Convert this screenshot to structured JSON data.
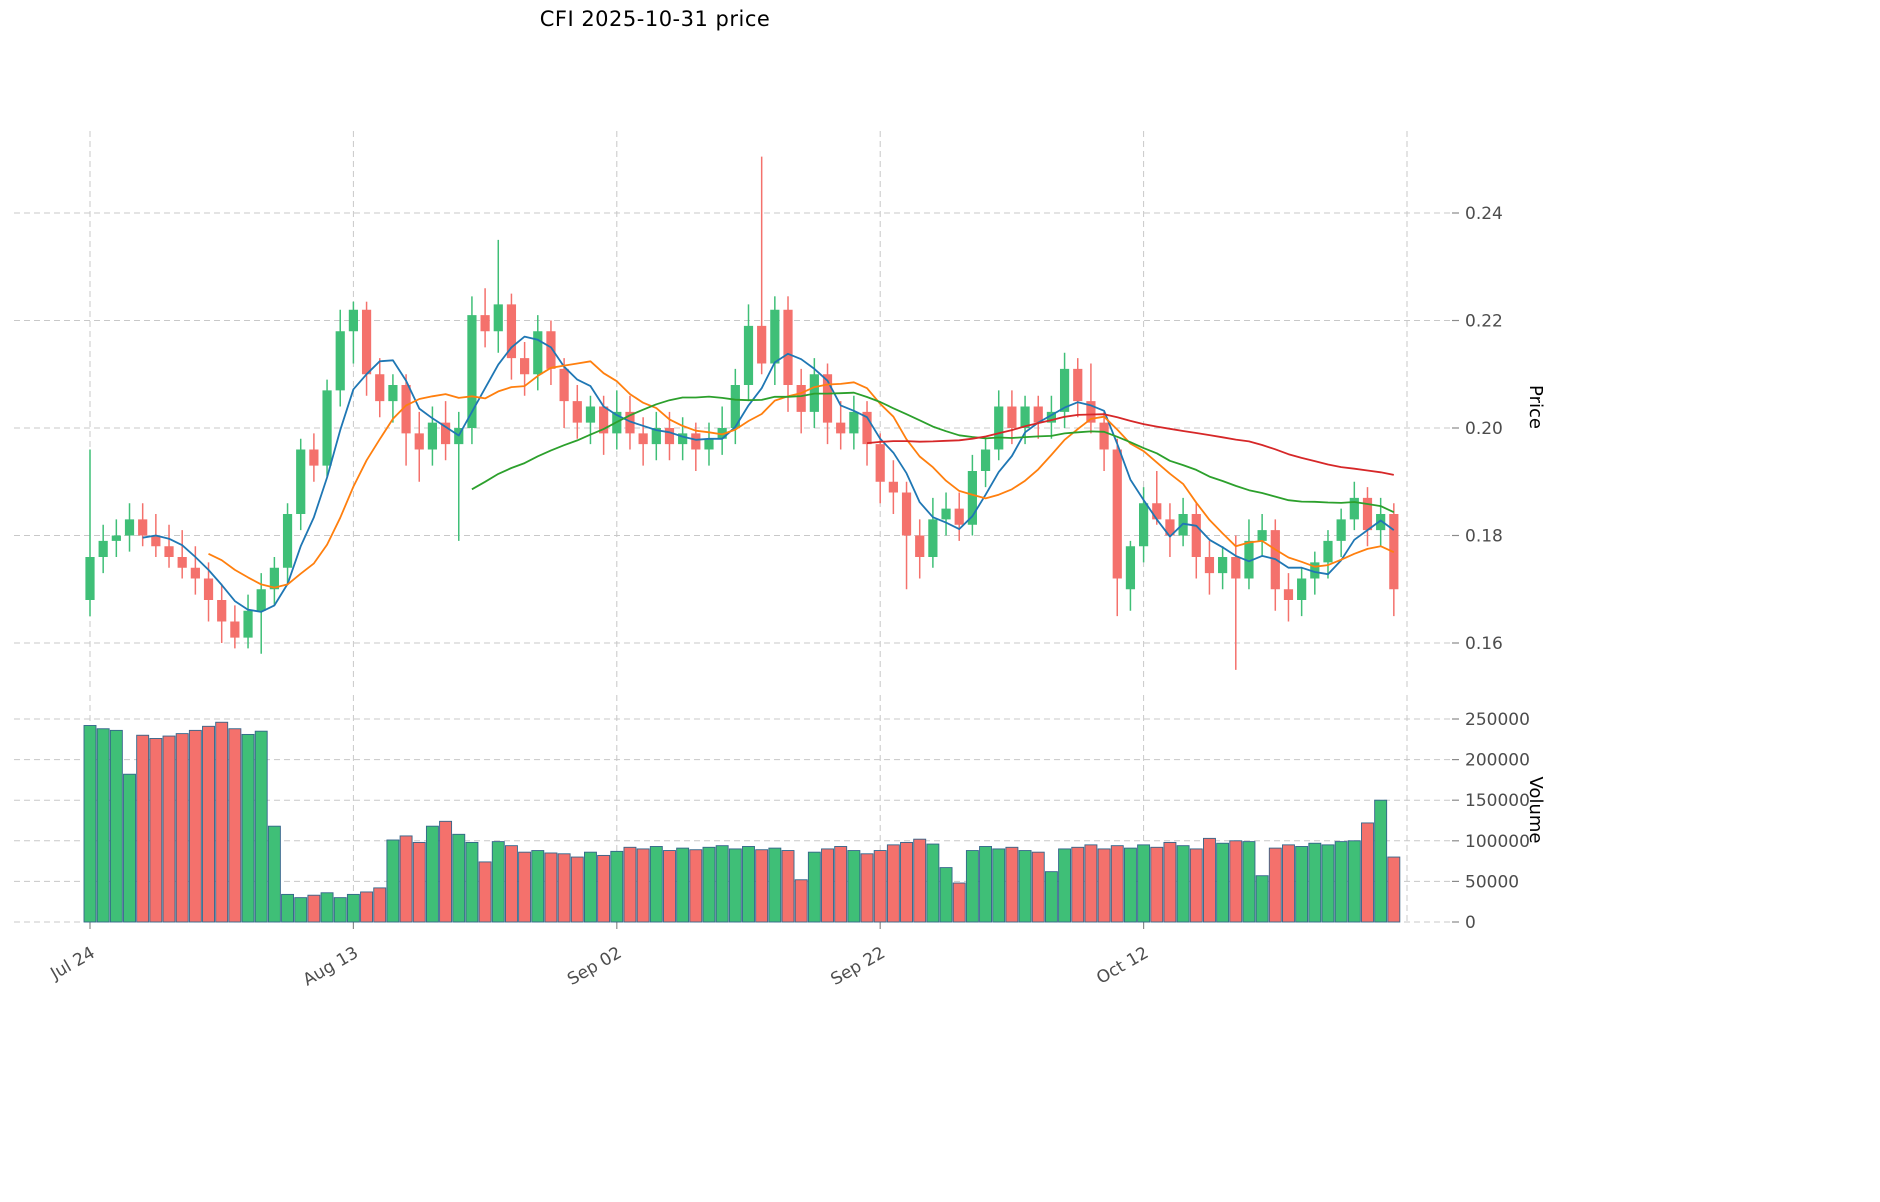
{
  "chart_data": {
    "type": "candlestick",
    "title": "CFI  2025-10-31  price",
    "ylabel": "Price",
    "ylabel_volume": "Volume",
    "grid": true,
    "legend_position": "none",
    "price_ylim": [
      0.153,
      0.2555
    ],
    "volume_ylim": [
      0,
      250000
    ],
    "price_ticks": [
      0.16,
      0.18,
      0.2,
      0.22,
      0.24
    ],
    "volume_ticks": [
      0,
      50000,
      100000,
      150000,
      200000,
      250000
    ],
    "x_tick_labels": [
      "Jul 24",
      "Aug 13",
      "Sep 02",
      "Sep 22",
      "Oct 12"
    ],
    "x_tick_indices": [
      0,
      20,
      40,
      60,
      80
    ],
    "x_grid_indices": [
      0,
      20,
      40,
      60,
      80,
      100
    ],
    "moving_averages": [
      {
        "name": "ma-5",
        "window": 5,
        "color": "#1f77b4"
      },
      {
        "name": "ma-10",
        "window": 10,
        "color": "#ff7f0e"
      },
      {
        "name": "ma-30",
        "window": 30,
        "color": "#2ca02c"
      },
      {
        "name": "ma-60",
        "window": 60,
        "color": "#d62728"
      }
    ],
    "colors": {
      "up": "#3fbf77",
      "down": "#f4716c",
      "volume_edge": "#33658a",
      "grid": "#c8c8c8",
      "tick_text": "#4d4d4d"
    },
    "columns": [
      "date",
      "open",
      "high",
      "low",
      "close",
      "volume"
    ],
    "ohlcv": [
      [
        "2025-07-24",
        0.168,
        0.196,
        0.165,
        0.176,
        242000
      ],
      [
        "2025-07-25",
        0.176,
        0.182,
        0.173,
        0.179,
        238000
      ],
      [
        "2025-07-26",
        0.179,
        0.183,
        0.176,
        0.18,
        236000
      ],
      [
        "2025-07-27",
        0.18,
        0.186,
        0.177,
        0.183,
        182000
      ],
      [
        "2025-07-28",
        0.183,
        0.186,
        0.178,
        0.18,
        230000
      ],
      [
        "2025-07-29",
        0.18,
        0.184,
        0.176,
        0.178,
        226000
      ],
      [
        "2025-07-30",
        0.178,
        0.182,
        0.174,
        0.176,
        229000
      ],
      [
        "2025-07-31",
        0.176,
        0.181,
        0.172,
        0.174,
        232000
      ],
      [
        "2025-08-01",
        0.174,
        0.178,
        0.169,
        0.172,
        236000
      ],
      [
        "2025-08-02",
        0.172,
        0.175,
        0.164,
        0.168,
        241000
      ],
      [
        "2025-08-03",
        0.168,
        0.171,
        0.16,
        0.164,
        246000
      ],
      [
        "2025-08-04",
        0.164,
        0.167,
        0.159,
        0.161,
        238000
      ],
      [
        "2025-08-05",
        0.161,
        0.169,
        0.159,
        0.166,
        231000
      ],
      [
        "2025-08-06",
        0.166,
        0.173,
        0.158,
        0.17,
        235000
      ],
      [
        "2025-08-07",
        0.17,
        0.176,
        0.167,
        0.174,
        118000
      ],
      [
        "2025-08-08",
        0.174,
        0.186,
        0.171,
        0.184,
        34000
      ],
      [
        "2025-08-09",
        0.184,
        0.198,
        0.181,
        0.196,
        30000
      ],
      [
        "2025-08-10",
        0.196,
        0.199,
        0.19,
        0.193,
        33000
      ],
      [
        "2025-08-11",
        0.193,
        0.209,
        0.191,
        0.207,
        36000
      ],
      [
        "2025-08-12",
        0.207,
        0.222,
        0.204,
        0.218,
        30000
      ],
      [
        "2025-08-13",
        0.218,
        0.2235,
        0.212,
        0.222,
        34000
      ],
      [
        "2025-08-14",
        0.222,
        0.2235,
        0.206,
        0.21,
        37000
      ],
      [
        "2025-08-15",
        0.21,
        0.213,
        0.202,
        0.205,
        42000
      ],
      [
        "2025-08-16",
        0.205,
        0.21,
        0.201,
        0.208,
        101000
      ],
      [
        "2025-08-17",
        0.208,
        0.21,
        0.193,
        0.199,
        106000
      ],
      [
        "2025-08-18",
        0.199,
        0.203,
        0.19,
        0.196,
        98000
      ],
      [
        "2025-08-19",
        0.196,
        0.204,
        0.193,
        0.201,
        118000
      ],
      [
        "2025-08-20",
        0.201,
        0.205,
        0.194,
        0.197,
        124000
      ],
      [
        "2025-08-21",
        0.197,
        0.203,
        0.179,
        0.2,
        108000
      ],
      [
        "2025-08-22",
        0.2,
        0.2245,
        0.197,
        0.221,
        98000
      ],
      [
        "2025-08-23",
        0.221,
        0.226,
        0.215,
        0.218,
        74000
      ],
      [
        "2025-08-24",
        0.218,
        0.235,
        0.214,
        0.223,
        99000
      ],
      [
        "2025-08-25",
        0.223,
        0.225,
        0.209,
        0.213,
        94000
      ],
      [
        "2025-08-26",
        0.213,
        0.216,
        0.206,
        0.21,
        86000
      ],
      [
        "2025-08-27",
        0.21,
        0.221,
        0.207,
        0.218,
        88000
      ],
      [
        "2025-08-28",
        0.218,
        0.22,
        0.208,
        0.211,
        85000
      ],
      [
        "2025-08-29",
        0.211,
        0.213,
        0.2,
        0.205,
        84000
      ],
      [
        "2025-08-30",
        0.205,
        0.208,
        0.198,
        0.201,
        80000
      ],
      [
        "2025-08-31",
        0.201,
        0.206,
        0.197,
        0.204,
        86000
      ],
      [
        "2025-09-01",
        0.204,
        0.206,
        0.195,
        0.199,
        82000
      ],
      [
        "2025-09-02",
        0.199,
        0.207,
        0.196,
        0.203,
        87000
      ],
      [
        "2025-09-03",
        0.203,
        0.206,
        0.196,
        0.199,
        92000
      ],
      [
        "2025-09-04",
        0.199,
        0.202,
        0.193,
        0.197,
        90000
      ],
      [
        "2025-09-05",
        0.197,
        0.203,
        0.194,
        0.2,
        93000
      ],
      [
        "2025-09-06",
        0.2,
        0.203,
        0.194,
        0.197,
        88000
      ],
      [
        "2025-09-07",
        0.197,
        0.202,
        0.194,
        0.199,
        91000
      ],
      [
        "2025-09-08",
        0.199,
        0.201,
        0.192,
        0.196,
        89000
      ],
      [
        "2025-09-09",
        0.196,
        0.201,
        0.193,
        0.198,
        92000
      ],
      [
        "2025-09-10",
        0.198,
        0.204,
        0.195,
        0.2,
        94000
      ],
      [
        "2025-09-11",
        0.2,
        0.211,
        0.197,
        0.208,
        90000
      ],
      [
        "2025-09-12",
        0.208,
        0.223,
        0.205,
        0.219,
        93000
      ],
      [
        "2025-09-13",
        0.219,
        0.2505,
        0.21,
        0.212,
        89000
      ],
      [
        "2025-09-14",
        0.212,
        0.2245,
        0.208,
        0.222,
        91000
      ],
      [
        "2025-09-15",
        0.222,
        0.2245,
        0.203,
        0.208,
        88000
      ],
      [
        "2025-09-16",
        0.208,
        0.211,
        0.199,
        0.203,
        52000
      ],
      [
        "2025-09-17",
        0.203,
        0.213,
        0.2,
        0.21,
        86000
      ],
      [
        "2025-09-18",
        0.21,
        0.212,
        0.197,
        0.201,
        90000
      ],
      [
        "2025-09-19",
        0.201,
        0.205,
        0.196,
        0.199,
        93000
      ],
      [
        "2025-09-20",
        0.199,
        0.206,
        0.196,
        0.203,
        88000
      ],
      [
        "2025-09-21",
        0.203,
        0.205,
        0.193,
        0.197,
        84000
      ],
      [
        "2025-09-22",
        0.197,
        0.199,
        0.186,
        0.19,
        88000
      ],
      [
        "2025-09-23",
        0.19,
        0.194,
        0.184,
        0.188,
        95000
      ],
      [
        "2025-09-24",
        0.188,
        0.19,
        0.17,
        0.18,
        98000
      ],
      [
        "2025-09-25",
        0.18,
        0.183,
        0.172,
        0.176,
        102000
      ],
      [
        "2025-09-26",
        0.176,
        0.187,
        0.174,
        0.183,
        96000
      ],
      [
        "2025-09-27",
        0.183,
        0.188,
        0.18,
        0.185,
        67000
      ],
      [
        "2025-09-28",
        0.185,
        0.188,
        0.179,
        0.182,
        48000
      ],
      [
        "2025-09-29",
        0.182,
        0.195,
        0.18,
        0.192,
        88000
      ],
      [
        "2025-09-30",
        0.192,
        0.198,
        0.189,
        0.196,
        93000
      ],
      [
        "2025-10-01",
        0.196,
        0.207,
        0.194,
        0.204,
        90000
      ],
      [
        "2025-10-02",
        0.204,
        0.207,
        0.197,
        0.2,
        92000
      ],
      [
        "2025-10-03",
        0.2,
        0.206,
        0.197,
        0.204,
        88000
      ],
      [
        "2025-10-04",
        0.204,
        0.206,
        0.198,
        0.201,
        86000
      ],
      [
        "2025-10-05",
        0.201,
        0.206,
        0.198,
        0.203,
        62000
      ],
      [
        "2025-10-06",
        0.203,
        0.214,
        0.2,
        0.211,
        90000
      ],
      [
        "2025-10-07",
        0.211,
        0.213,
        0.202,
        0.205,
        92000
      ],
      [
        "2025-10-08",
        0.205,
        0.212,
        0.199,
        0.201,
        95000
      ],
      [
        "2025-10-09",
        0.201,
        0.203,
        0.192,
        0.196,
        90000
      ],
      [
        "2025-10-10",
        0.196,
        0.198,
        0.165,
        0.172,
        94000
      ],
      [
        "2025-10-11",
        0.17,
        0.179,
        0.166,
        0.178,
        91000
      ],
      [
        "2025-10-12",
        0.178,
        0.189,
        0.175,
        0.186,
        95000
      ],
      [
        "2025-10-13",
        0.186,
        0.192,
        0.182,
        0.183,
        92000
      ],
      [
        "2025-10-14",
        0.183,
        0.186,
        0.176,
        0.18,
        98000
      ],
      [
        "2025-10-15",
        0.18,
        0.187,
        0.178,
        0.184,
        94000
      ],
      [
        "2025-10-16",
        0.184,
        0.186,
        0.172,
        0.176,
        90000
      ],
      [
        "2025-10-17",
        0.176,
        0.179,
        0.169,
        0.173,
        103000
      ],
      [
        "2025-10-18",
        0.173,
        0.178,
        0.17,
        0.176,
        97000
      ],
      [
        "2025-10-19",
        0.176,
        0.18,
        0.155,
        0.172,
        100000
      ],
      [
        "2025-10-20",
        0.172,
        0.183,
        0.17,
        0.179,
        99000
      ],
      [
        "2025-10-21",
        0.179,
        0.184,
        0.176,
        0.181,
        57000
      ],
      [
        "2025-10-22",
        0.181,
        0.183,
        0.166,
        0.17,
        91000
      ],
      [
        "2025-10-23",
        0.17,
        0.173,
        0.164,
        0.168,
        95000
      ],
      [
        "2025-10-24",
        0.168,
        0.174,
        0.165,
        0.172,
        93000
      ],
      [
        "2025-10-25",
        0.172,
        0.177,
        0.169,
        0.175,
        97000
      ],
      [
        "2025-10-26",
        0.175,
        0.181,
        0.172,
        0.179,
        95000
      ],
      [
        "2025-10-27",
        0.179,
        0.185,
        0.176,
        0.183,
        99000
      ],
      [
        "2025-10-28",
        0.183,
        0.19,
        0.181,
        0.187,
        100000
      ],
      [
        "2025-10-29",
        0.187,
        0.189,
        0.178,
        0.181,
        122000
      ],
      [
        "2025-10-30",
        0.181,
        0.187,
        0.178,
        0.184,
        150000
      ],
      [
        "2025-10-31",
        0.184,
        0.186,
        0.165,
        0.17,
        80000
      ]
    ]
  }
}
